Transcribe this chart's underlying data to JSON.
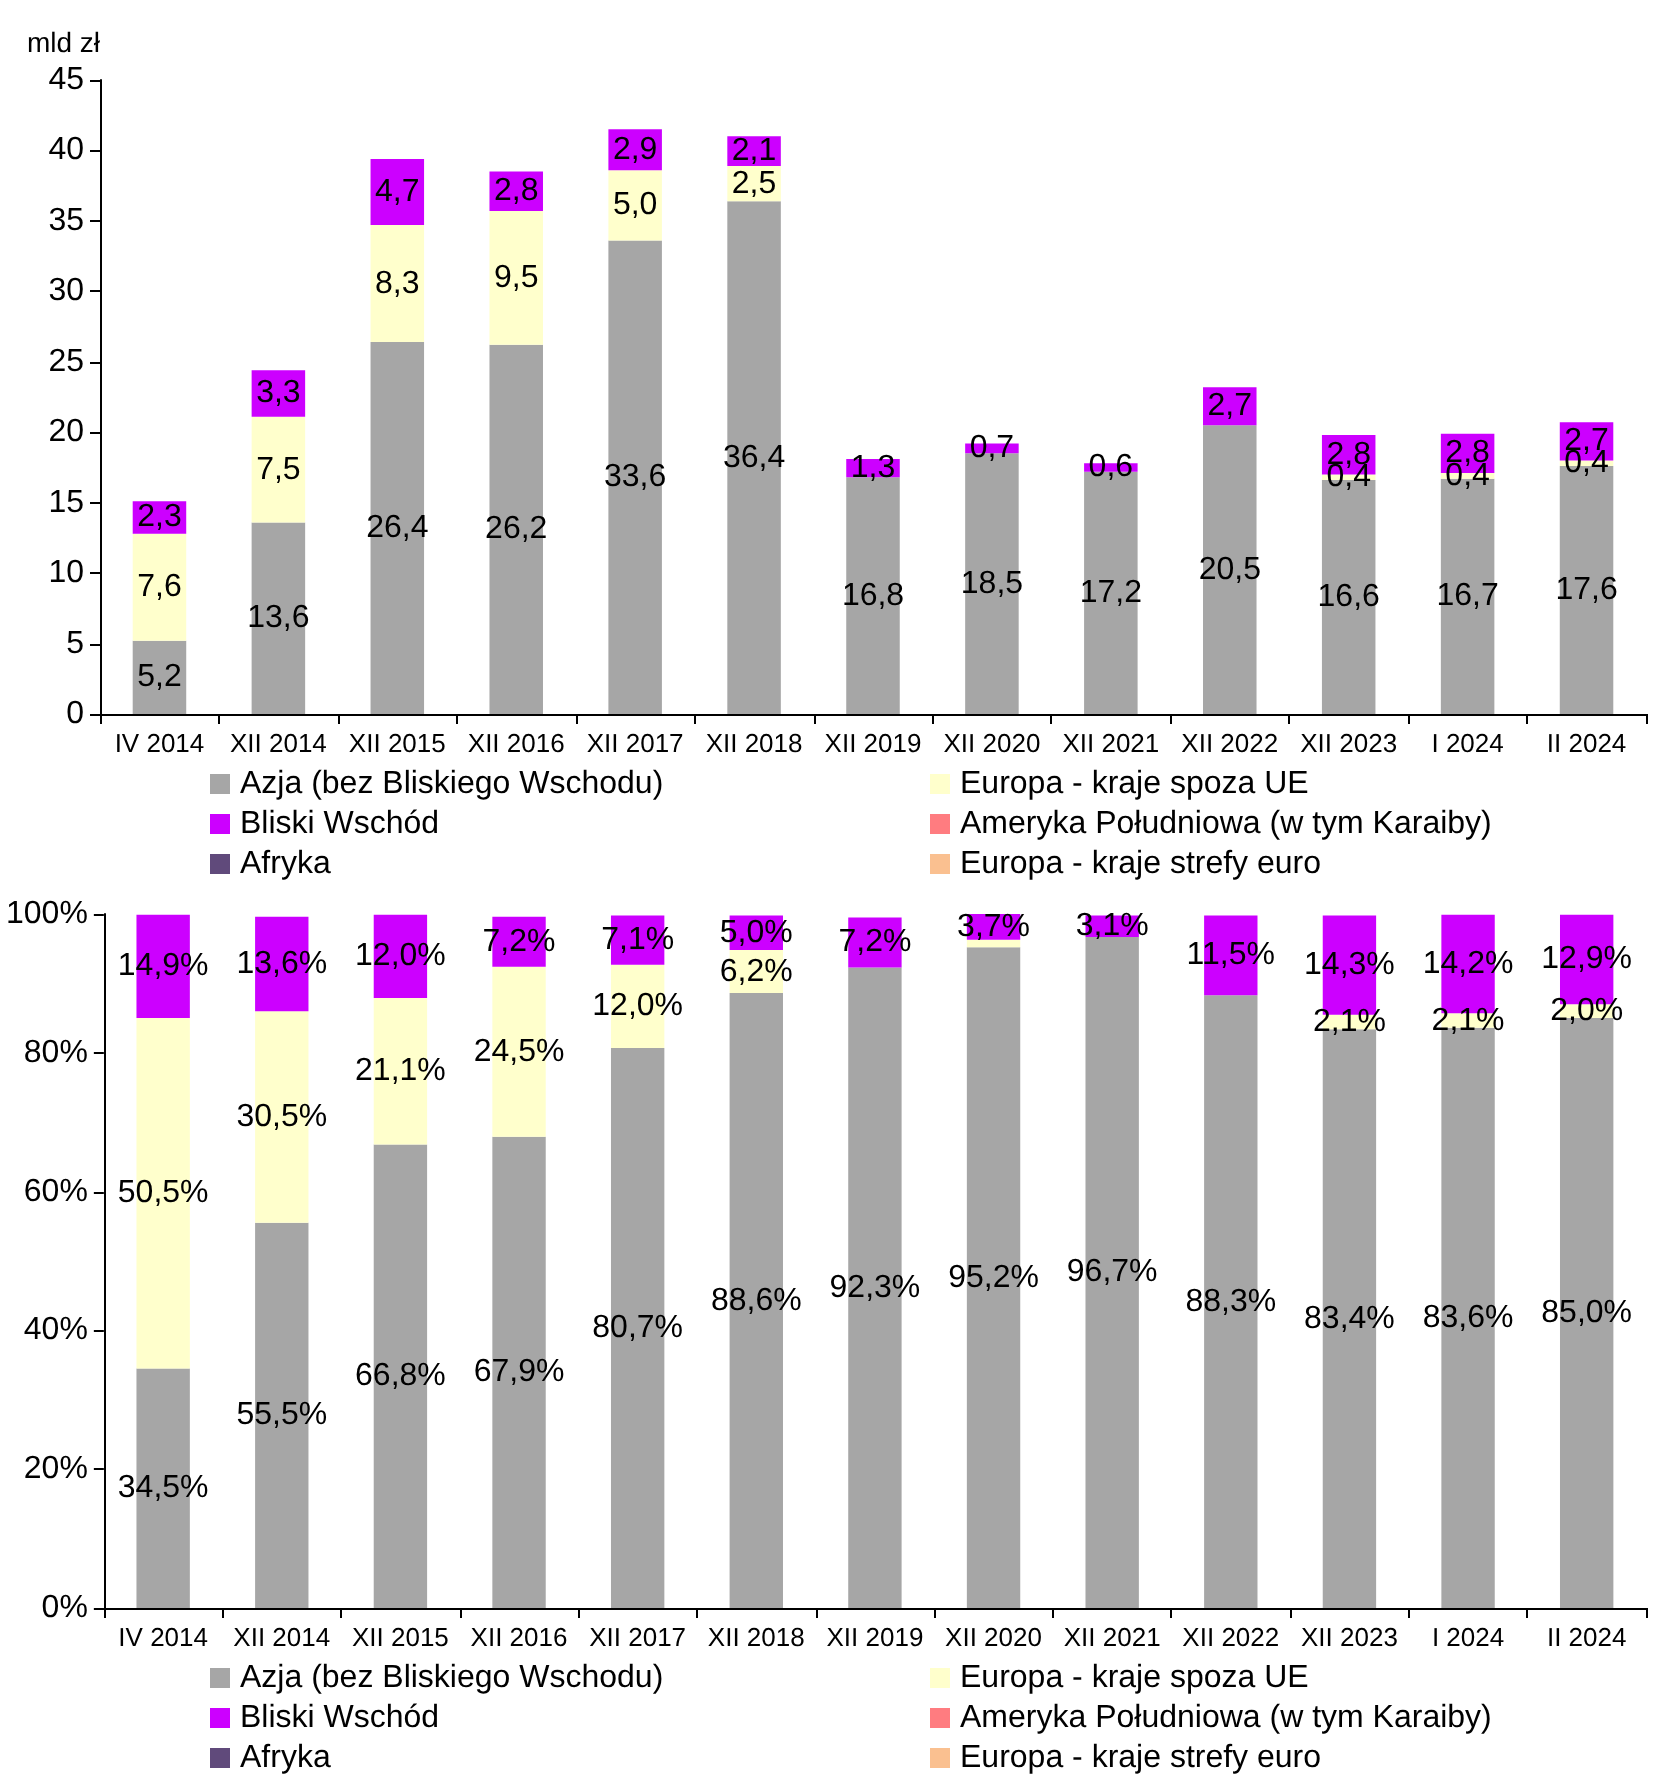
{
  "chart_data": [
    {
      "type": "bar",
      "stacked": true,
      "ylabel": "mld zł",
      "legend": "bottom",
      "categories": [
        "IV 2014",
        "XII 2014",
        "XII 2015",
        "XII 2016",
        "XII 2017",
        "XII 2018",
        "XII 2019",
        "XII 2020",
        "XII 2021",
        "XII 2022",
        "XII 2023",
        "I 2024",
        "II 2024"
      ],
      "ylim": [
        0,
        45
      ],
      "yticks": [
        0,
        5,
        10,
        15,
        20,
        25,
        30,
        35,
        40,
        45
      ],
      "series": [
        {
          "name": "Azja (bez Bliskiego Wschodu)",
          "color": "#a6a6a6",
          "values": [
            5.2,
            13.6,
            26.4,
            26.2,
            33.6,
            36.4,
            16.8,
            18.5,
            17.2,
            20.5,
            16.6,
            16.7,
            17.6
          ],
          "value_labels": [
            "5,2",
            "13,6",
            "26,4",
            "26,2",
            "33,6",
            "36,4",
            "16,8",
            "18,5",
            "17,2",
            "20,5",
            "16,6",
            "16,7",
            "17,6"
          ]
        },
        {
          "name": "Europa - kraje spoza UE",
          "color": "#ffffcc",
          "values": [
            7.6,
            7.5,
            8.3,
            9.5,
            5.0,
            2.5,
            null,
            null,
            null,
            null,
            0.4,
            0.4,
            0.4
          ],
          "value_labels": [
            "7,6",
            "7,5",
            "8,3",
            "9,5",
            "5,0",
            "2,5",
            null,
            null,
            null,
            null,
            "0,4",
            "0,4",
            "0,4"
          ]
        },
        {
          "name": "Bliski Wschód",
          "color": "#cc00ff",
          "values": [
            2.3,
            3.3,
            4.7,
            2.8,
            2.9,
            2.1,
            1.3,
            0.7,
            0.6,
            2.7,
            2.8,
            2.8,
            2.7
          ],
          "value_labels": [
            "2,3",
            "3,3",
            "4,7",
            "2,8",
            "2,9",
            "2,1",
            "1,3",
            "0,7",
            "0,6",
            "2,7",
            "2,8",
            "2,8",
            "2,7"
          ]
        },
        {
          "name": "Ameryka Południowa (w tym Karaiby)",
          "color": "#ff7c80",
          "values": [
            0,
            0,
            0,
            0,
            0,
            0,
            0,
            0,
            0,
            0,
            0,
            0,
            0
          ]
        },
        {
          "name": "Afryka",
          "color": "#604a7b",
          "values": [
            0,
            0,
            0,
            0,
            0,
            0,
            0,
            0,
            0,
            0,
            0,
            0,
            0
          ]
        },
        {
          "name": "Europa - kraje strefy euro",
          "color": "#fac090",
          "values": [
            0,
            0,
            0,
            0,
            0,
            0,
            0,
            0,
            0,
            0,
            0,
            0,
            0
          ]
        }
      ]
    },
    {
      "type": "bar",
      "stacked": true,
      "legend": "bottom",
      "categories": [
        "IV 2014",
        "XII 2014",
        "XII 2015",
        "XII 2016",
        "XII 2017",
        "XII 2018",
        "XII 2019",
        "XII 2020",
        "XII 2021",
        "XII 2022",
        "XII 2023",
        "I 2024",
        "II 2024"
      ],
      "ylim": [
        0,
        100
      ],
      "yticks": [
        {
          "value": 0,
          "label": "0%"
        },
        {
          "value": 20,
          "label": "20%"
        },
        {
          "value": 40,
          "label": "40%"
        },
        {
          "value": 60,
          "label": "60%"
        },
        {
          "value": 80,
          "label": "80%"
        },
        {
          "value": 100,
          "label": "100%"
        }
      ],
      "series": [
        {
          "name": "Azja (bez Bliskiego Wschodu)",
          "color": "#a6a6a6",
          "values": [
            34.5,
            55.5,
            66.8,
            67.9,
            80.7,
            88.6,
            92.3,
            95.2,
            96.7,
            88.3,
            83.4,
            83.6,
            85.0
          ],
          "value_labels": [
            "34,5%",
            "55,5%",
            "66,8%",
            "67,9%",
            "80,7%",
            "88,6%",
            "92,3%",
            "95,2%",
            "96,7%",
            "88,3%",
            "83,4%",
            "83,6%",
            "85,0%"
          ]
        },
        {
          "name": "Europa - kraje spoza UE",
          "color": "#ffffcc",
          "values": [
            50.5,
            30.5,
            21.1,
            24.5,
            12.0,
            6.2,
            null,
            1.1,
            null,
            null,
            2.1,
            2.1,
            2.0
          ],
          "value_labels": [
            "50,5%",
            "30,5%",
            "21,1%",
            "24,5%",
            "12,0%",
            "6,2%",
            null,
            null,
            null,
            null,
            "2,1%",
            "2,1%",
            "2,0%"
          ]
        },
        {
          "name": "Bliski Wschód",
          "color": "#cc00ff",
          "values": [
            14.9,
            13.6,
            12.0,
            7.2,
            7.1,
            5.0,
            7.2,
            3.7,
            3.1,
            11.5,
            14.3,
            14.2,
            12.9
          ],
          "value_labels": [
            "14,9%",
            "13,6%",
            "12,0%",
            "7,2%",
            "7,1%",
            "5,0%",
            "7,2%",
            "3,7%",
            "3,1%",
            "11,5%",
            "14,3%",
            "14,2%",
            "12,9%"
          ]
        },
        {
          "name": "Ameryka Południowa (w tym Karaiby)",
          "color": "#ff7c80",
          "values": [
            0,
            0,
            0,
            0,
            0,
            0,
            0,
            0,
            0,
            0,
            0,
            0,
            0
          ]
        },
        {
          "name": "Afryka",
          "color": "#604a7b",
          "values": [
            0,
            0,
            0,
            0,
            0,
            0,
            0,
            0,
            0,
            0,
            0,
            0,
            0
          ]
        },
        {
          "name": "Europa - kraje strefy euro",
          "color": "#fac090",
          "values": [
            0,
            0,
            0,
            0,
            0,
            0,
            0,
            0,
            0,
            0,
            0,
            0,
            0
          ]
        }
      ]
    }
  ]
}
